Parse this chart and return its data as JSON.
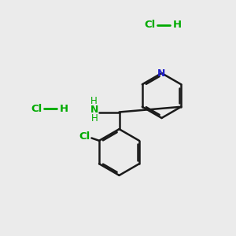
{
  "background_color": "#ebebeb",
  "bond_color": "#1a1a1a",
  "nitrogen_color": "#2020cc",
  "chlorine_color": "#00aa00",
  "nh_color": "#00aa00",
  "figsize": [
    3.0,
    3.0
  ],
  "dpi": 100,
  "hcl1": [
    0.635,
    0.895
  ],
  "hcl2": [
    0.155,
    0.54
  ]
}
